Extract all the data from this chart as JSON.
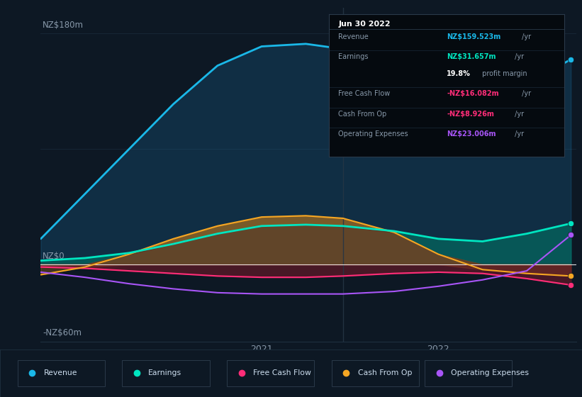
{
  "background_color": "#0d1824",
  "plot_bg_color": "#0d1824",
  "fig_width": 8.21,
  "fig_height": 5.6,
  "dpi": 100,
  "ylim": [
    -60,
    200
  ],
  "xmin": 2019.75,
  "xmax": 2022.78,
  "divider_x": 2021.46,
  "line_colors": {
    "Revenue": "#1ab8e8",
    "Earnings": "#00e5c0",
    "Free Cash Flow": "#ff2d78",
    "Cash From Op": "#f5a623",
    "Operating Expenses": "#a855f7"
  },
  "legend_items": [
    {
      "label": "Revenue",
      "color": "#1ab8e8"
    },
    {
      "label": "Earnings",
      "color": "#00e5c0"
    },
    {
      "label": "Free Cash Flow",
      "color": "#ff2d78"
    },
    {
      "label": "Cash From Op",
      "color": "#f5a623"
    },
    {
      "label": "Operating Expenses",
      "color": "#a855f7"
    }
  ],
  "tooltip": {
    "date": "Jun 30 2022",
    "rows": [
      {
        "label": "Revenue",
        "value": "NZ$159.523m",
        "value_color": "#1ab8e8",
        "suffix": " /yr"
      },
      {
        "label": "Earnings",
        "value": "NZ$31.657m",
        "value_color": "#00e5c0",
        "suffix": " /yr"
      },
      {
        "label": "",
        "value": "19.8%",
        "value_color": "#ffffff",
        "suffix": " profit margin"
      },
      {
        "label": "Free Cash Flow",
        "value": "-NZ$16.082m",
        "value_color": "#ff2d78",
        "suffix": " /yr"
      },
      {
        "label": "Cash From Op",
        "value": "-NZ$8.926m",
        "value_color": "#ff2d78",
        "suffix": " /yr"
      },
      {
        "label": "Operating Expenses",
        "value": "NZ$23.006m",
        "value_color": "#a855f7",
        "suffix": " /yr"
      }
    ]
  },
  "x_data": [
    2019.75,
    2020.0,
    2020.25,
    2020.5,
    2020.75,
    2021.0,
    2021.25,
    2021.46,
    2021.75,
    2022.0,
    2022.25,
    2022.5,
    2022.75
  ],
  "Revenue": [
    20,
    55,
    90,
    125,
    155,
    170,
    172,
    168,
    148,
    118,
    115,
    140,
    160
  ],
  "Earnings": [
    3,
    5,
    9,
    16,
    24,
    30,
    31,
    30,
    26,
    20,
    18,
    24,
    32
  ],
  "Free Cash Flow": [
    -2,
    -3,
    -5,
    -7,
    -9,
    -10,
    -10,
    -9,
    -7,
    -6,
    -7,
    -11,
    -16
  ],
  "Cash From Op": [
    -8,
    -2,
    8,
    20,
    30,
    37,
    38,
    36,
    25,
    8,
    -4,
    -7,
    -9
  ],
  "Operating Expenses": [
    -6,
    -10,
    -15,
    -19,
    -22,
    -23,
    -23,
    -23,
    -21,
    -17,
    -12,
    -5,
    23
  ]
}
